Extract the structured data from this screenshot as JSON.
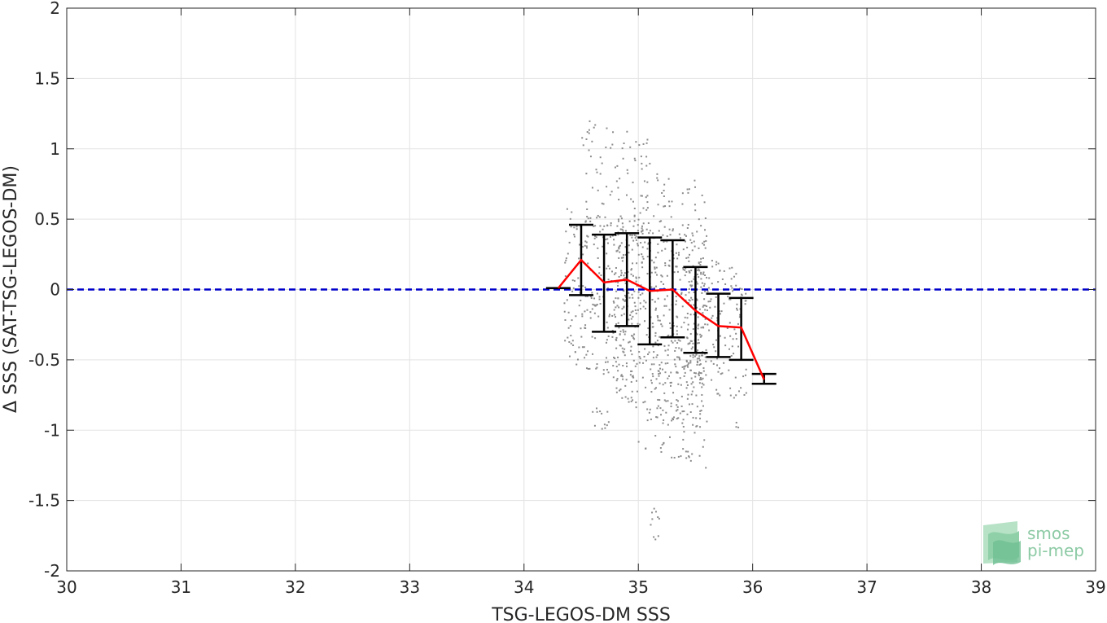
{
  "chart_data": {
    "type": "scatter",
    "xlabel": "TSG-LEGOS-DM SSS",
    "ylabel": "Δ SSS (SAT-TSG-LEGOS-DM)",
    "xlim": [
      30,
      39
    ],
    "ylim": [
      -2,
      2
    ],
    "xticks": [
      30,
      31,
      32,
      33,
      34,
      35,
      36,
      37,
      38,
      39
    ],
    "yticks": [
      -2,
      -1.5,
      -1,
      -0.5,
      0,
      0.5,
      1,
      1.5,
      2
    ],
    "xtick_labels": [
      "30",
      "31",
      "32",
      "33",
      "34",
      "35",
      "36",
      "37",
      "38",
      "39"
    ],
    "ytick_labels": [
      "-2",
      "-1.5",
      "-1",
      "-0.5",
      "0",
      "0.5",
      "1",
      "1.5",
      "2"
    ],
    "grid": true,
    "reference_line": {
      "y": 0,
      "color": "#0000cc",
      "style": "dashed"
    },
    "scatter_color": "#8c8c8c",
    "scatter_clusters": [
      {
        "x": [
          34.35,
          35.0
        ],
        "y": [
          -0.6,
          0.5
        ],
        "density": 260
      },
      {
        "x": [
          34.8,
          35.6
        ],
        "y": [
          -0.9,
          0.5
        ],
        "density": 420
      },
      {
        "x": [
          35.0,
          35.6
        ],
        "y": [
          -1.2,
          0.85
        ],
        "density": 220
      },
      {
        "x": [
          35.4,
          35.95
        ],
        "y": [
          -0.75,
          0.2
        ],
        "density": 180
      },
      {
        "x": [
          34.5,
          35.1
        ],
        "y": [
          0.4,
          1.15
        ],
        "density": 90
      },
      {
        "x": [
          34.6,
          34.75
        ],
        "y": [
          -1.0,
          -0.85
        ],
        "density": 12
      },
      {
        "x": [
          35.1,
          35.2
        ],
        "y": [
          -1.85,
          -1.55
        ],
        "density": 10
      },
      {
        "x": [
          35.85,
          35.9
        ],
        "y": [
          -1.0,
          -0.95
        ],
        "density": 3
      }
    ],
    "mean_line": {
      "color": "#ff0000",
      "x": [
        34.3,
        34.5,
        34.7,
        34.9,
        35.1,
        35.3,
        35.5,
        35.7,
        35.9,
        36.1
      ],
      "y": [
        0.01,
        0.21,
        0.05,
        0.07,
        -0.01,
        0.0,
        -0.15,
        -0.26,
        -0.27,
        -0.64
      ]
    },
    "error_bars": {
      "color": "#000000",
      "x": [
        34.3,
        34.5,
        34.7,
        34.9,
        35.1,
        35.3,
        35.5,
        35.7,
        35.9,
        36.1
      ],
      "lower": [
        0.01,
        -0.04,
        -0.3,
        -0.26,
        -0.39,
        -0.34,
        -0.45,
        -0.48,
        -0.5,
        -0.67
      ],
      "upper": [
        0.01,
        0.46,
        0.39,
        0.4,
        0.37,
        0.35,
        0.16,
        -0.03,
        -0.06,
        -0.6
      ]
    }
  },
  "logo": {
    "line1": "smos",
    "line2": "pi-mep"
  }
}
